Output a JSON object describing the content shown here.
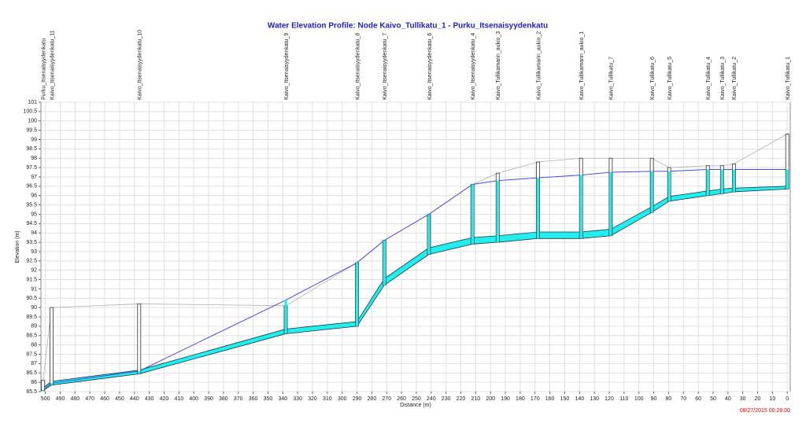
{
  "chart_data": {
    "type": "profile",
    "title": "Water Elevation Profile:  Node Kaivo_Tullikatu_1 - Purku_Itsenaisyydenkatu",
    "x_label": "Distance (m)",
    "y_label": "Elevation (m)",
    "timestamp": "08/27/2015 00:28:00",
    "nodes": [
      "Purku_Itsenaisyydenkatu",
      "Kaivo_Itsenaisyydenkatu_11",
      "Kaivo_Itsenaisyydenkatu_10",
      "Kaivo_Itsenaisyydenkatu_9",
      "Kaivo_Itsenaisyydenkatu_8",
      "Kaivo_Itsenaisyydenkatu_7",
      "Kaivo_Itsenaisyydenkatu_6",
      "Kaivo_Itsenaisyydenkatu_4",
      "Kaivo_Tullikamarin_aukio_3",
      "Kaivo_Tullikamarin_aukio_2",
      "Kaivo_Tullikamarin_aukio_1",
      "Kaivo_Tullikatu_7",
      "Kaivo_Tullikatu_6",
      "Kaivo_Tullikatu_5",
      "Kaivo_Tullikatu_4",
      "Kaivo_Tullikatu_3",
      "Kaivo_Tullikatu_2",
      "Kaivo_Tullikatu_1"
    ],
    "x": [
      501.6,
      495.8,
      436.8,
      338,
      290,
      271.6,
      241.5,
      212.2,
      195.2,
      168,
      139,
      119,
      91.3,
      79.6,
      53.6,
      44,
      36,
      0
    ],
    "invert": [
      85.55,
      85.85,
      86.45,
      88.6,
      89.0,
      91.2,
      92.85,
      93.4,
      93.5,
      93.7,
      93.7,
      93.85,
      95.1,
      95.7,
      96.0,
      96.1,
      96.2,
      96.35
    ],
    "crown": [
      85.7,
      86.05,
      86.65,
      88.85,
      89.25,
      91.55,
      93.2,
      93.75,
      93.85,
      94.05,
      94.05,
      94.2,
      95.4,
      95.95,
      96.25,
      96.35,
      96.4,
      96.5
    ],
    "ground": [
      86.1,
      90.0,
      90.2,
      90.1,
      92.4,
      93.6,
      95.0,
      96.6,
      97.2,
      97.8,
      98.0,
      98.0,
      98.0,
      97.5,
      97.6,
      97.6,
      97.7,
      99.3
    ],
    "hgl": [
      85.6,
      85.95,
      86.6,
      90.4,
      92.4,
      93.6,
      95.0,
      96.6,
      96.8,
      96.95,
      97.1,
      97.25,
      97.3,
      97.3,
      97.4,
      97.4,
      97.4,
      97.4
    ],
    "xlim": [
      503,
      -2
    ],
    "ylim": [
      85.5,
      101
    ],
    "xticks": [
      500,
      490,
      480,
      470,
      460,
      450,
      440,
      430,
      420,
      410,
      400,
      390,
      380,
      370,
      360,
      350,
      340,
      330,
      320,
      310,
      300,
      290,
      280,
      270,
      260,
      250,
      240,
      230,
      220,
      210,
      200,
      190,
      180,
      170,
      160,
      150,
      140,
      130,
      120,
      110,
      100,
      90,
      80,
      70,
      60,
      50,
      40,
      30,
      20,
      10,
      0
    ],
    "yticks": [
      85.5,
      86,
      86.5,
      87,
      87.5,
      88,
      88.5,
      89,
      89.5,
      90,
      90.5,
      91,
      91.5,
      92,
      92.5,
      93,
      93.5,
      94,
      94.5,
      95,
      95.5,
      96,
      96.5,
      97,
      97.5,
      98,
      98.5,
      99,
      99.5,
      100,
      100.5,
      101
    ],
    "grid": true
  }
}
